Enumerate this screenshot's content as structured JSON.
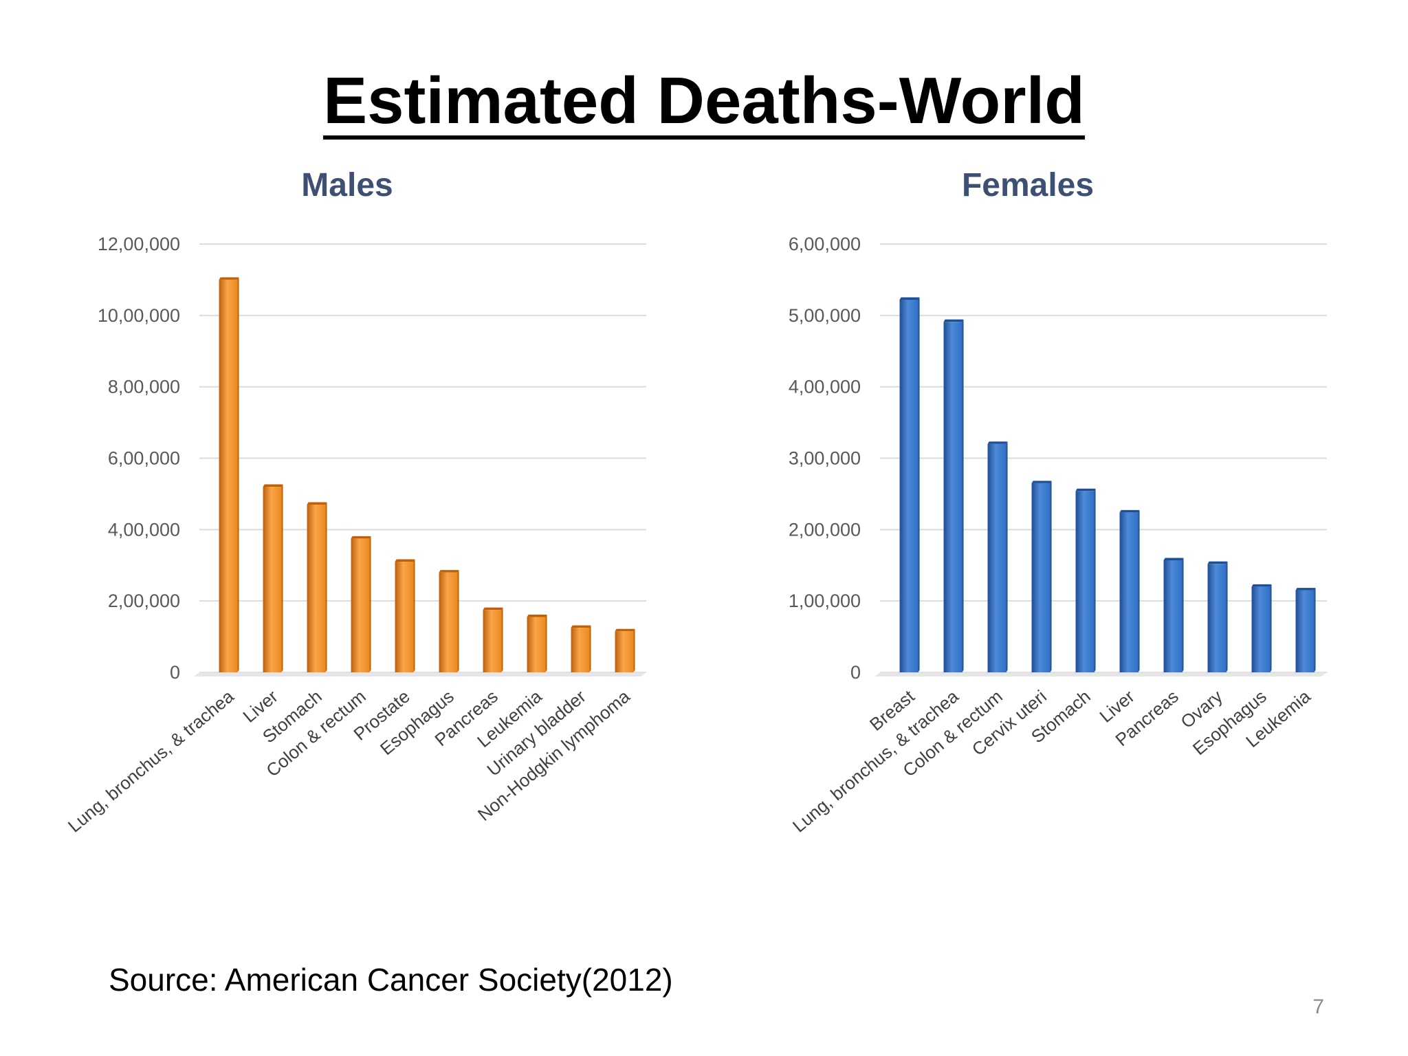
{
  "slide": {
    "title": "Estimated Deaths-World",
    "source": "Source: American Cancer Society(2012)",
    "page_number": "7"
  },
  "chart_data": [
    {
      "type": "bar",
      "title": "Males",
      "xlabel": "",
      "ylabel": "",
      "categories": [
        "Lung, bronchus, & trachea",
        "Liver",
        "Stomach",
        "Colon & rectum",
        "Prostate",
        "Esophagus",
        "Pancreas",
        "Leukemia",
        "Urinary bladder",
        "Non-Hodgkin lymphoma"
      ],
      "values": [
        1100000,
        520000,
        470000,
        375000,
        310000,
        280000,
        175000,
        155000,
        125000,
        115000
      ],
      "ylim": [
        0,
        1200000
      ],
      "yticks": [
        0,
        200000,
        400000,
        600000,
        800000,
        1000000,
        1200000
      ],
      "ytick_labels": [
        "0",
        "2,00,000",
        "4,00,000",
        "6,00,000",
        "8,00,000",
        "10,00,000",
        "12,00,000"
      ],
      "grid": true,
      "legend": "none",
      "colors": {
        "bar": "#f0891f",
        "bar_dark": "#c05f08",
        "bar_light": "#f7a54a",
        "title": "#3d4f73"
      }
    },
    {
      "type": "bar",
      "title": "Females",
      "xlabel": "",
      "ylabel": "",
      "categories": [
        "Breast",
        "Lung, bronchus, & trachea",
        "Colon & rectum",
        "Cervix uteri",
        "Stomach",
        "Liver",
        "Pancreas",
        "Ovary",
        "Esophagus",
        "Leukemia"
      ],
      "values": [
        522000,
        491000,
        320000,
        265000,
        254000,
        224000,
        157000,
        152000,
        120000,
        115000
      ],
      "ylim": [
        0,
        600000
      ],
      "yticks": [
        0,
        100000,
        200000,
        300000,
        400000,
        500000,
        600000
      ],
      "ytick_labels": [
        "0",
        "1,00,000",
        "2,00,000",
        "3,00,000",
        "4,00,000",
        "5,00,000",
        "6,00,000"
      ],
      "grid": true,
      "legend": "none",
      "colors": {
        "bar": "#2f6fc4",
        "bar_dark": "#1d4f94",
        "bar_light": "#4f8ad8",
        "title": "#3d4f73"
      }
    }
  ]
}
